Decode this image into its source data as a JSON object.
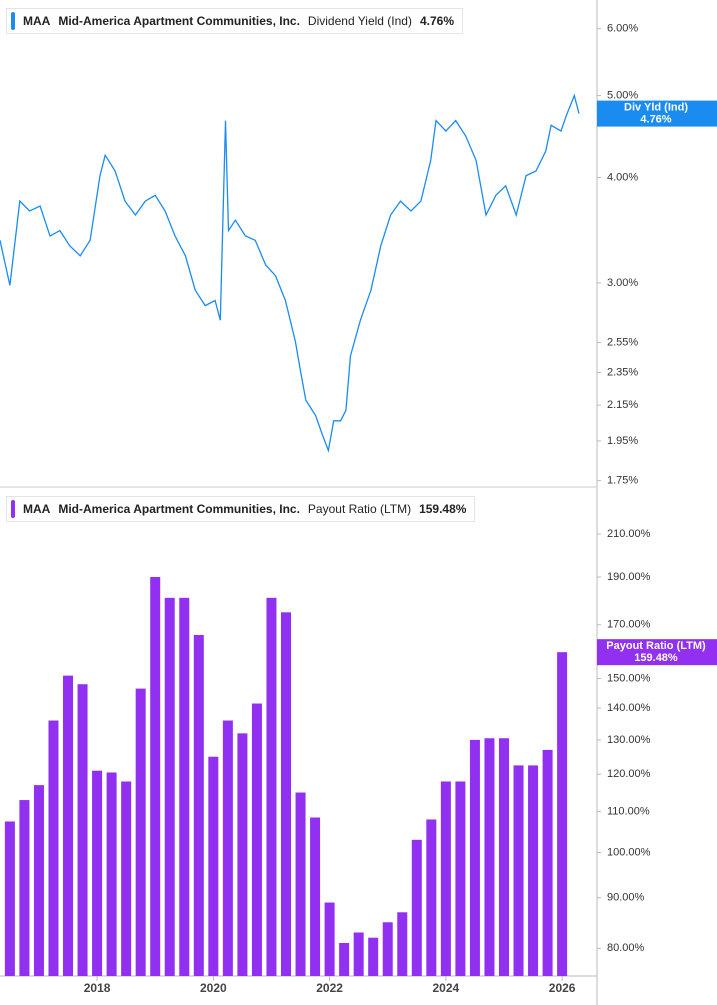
{
  "chart_data": [
    {
      "type": "line",
      "ticker": "MAA",
      "company": "Mid-America Apartment Communities, Inc.",
      "metric": "Dividend Yield (Ind)",
      "current": 4.76,
      "current_label": "4.76%",
      "badge_title": "Div Yld (Ind)",
      "color": "#1a8cf0",
      "log_scale": true,
      "x": [
        2016.33,
        2016.5,
        2016.67,
        2016.84,
        2017.02,
        2017.19,
        2017.36,
        2017.53,
        2017.71,
        2017.88,
        2018.05,
        2018.14,
        2018.31,
        2018.48,
        2018.66,
        2018.83,
        2019.0,
        2019.17,
        2019.34,
        2019.52,
        2019.69,
        2019.86,
        2020.03,
        2020.12,
        2020.21,
        2020.26,
        2020.38,
        2020.55,
        2020.72,
        2020.9,
        2021.07,
        2021.24,
        2021.41,
        2021.5,
        2021.59,
        2021.76,
        2021.88,
        2021.98,
        2022.07,
        2022.19,
        2022.28,
        2022.36,
        2022.53,
        2022.71,
        2022.88,
        2023.05,
        2023.22,
        2023.4,
        2023.57,
        2023.74,
        2023.83,
        2024.0,
        2024.17,
        2024.34,
        2024.52,
        2024.69,
        2024.86,
        2025.03,
        2025.21,
        2025.38,
        2025.55,
        2025.72,
        2025.81,
        2025.98,
        2026.07,
        2026.21,
        2026.29
      ],
      "values": [
        3.37,
        2.98,
        3.75,
        3.65,
        3.7,
        3.41,
        3.46,
        3.32,
        3.23,
        3.37,
        4.02,
        4.25,
        4.07,
        3.75,
        3.61,
        3.75,
        3.81,
        3.65,
        3.41,
        3.23,
        2.94,
        2.82,
        2.86,
        2.71,
        4.67,
        3.46,
        3.56,
        3.41,
        3.37,
        3.15,
        3.06,
        2.86,
        2.56,
        2.36,
        2.18,
        2.09,
        1.98,
        1.9,
        2.06,
        2.06,
        2.12,
        2.46,
        2.71,
        2.94,
        3.32,
        3.61,
        3.75,
        3.65,
        3.75,
        4.19,
        4.67,
        4.54,
        4.67,
        4.48,
        4.19,
        3.61,
        3.81,
        3.91,
        3.61,
        4.02,
        4.07,
        4.3,
        4.61,
        4.54,
        4.73,
        5.0,
        4.76
      ],
      "xlim": [
        2016.33,
        2026.6
      ],
      "ylim": [
        1.72,
        6.4
      ],
      "yticks": [
        {
          "value": 1.75,
          "label": "1.75%"
        },
        {
          "value": 1.95,
          "label": "1.95%"
        },
        {
          "value": 2.15,
          "label": "2.15%"
        },
        {
          "value": 2.35,
          "label": "2.35%"
        },
        {
          "value": 2.55,
          "label": "2.55%"
        },
        {
          "value": 3,
          "label": "3.00%"
        },
        {
          "value": 4,
          "label": "4.00%"
        },
        {
          "value": 5,
          "label": "5.00%"
        },
        {
          "value": 6,
          "label": "6.00%"
        }
      ]
    },
    {
      "type": "bar",
      "ticker": "MAA",
      "company": "Mid-America Apartment Communities, Inc.",
      "metric": "Payout Ratio (LTM)",
      "current": 159.48,
      "current_label": "159.48%",
      "color": "#9130f0",
      "log_scale": true,
      "x": [
        2016.5,
        2016.75,
        2017,
        2017.25,
        2017.5,
        2017.75,
        2018,
        2018.25,
        2018.5,
        2018.75,
        2019,
        2019.25,
        2019.5,
        2019.75,
        2020,
        2020.25,
        2020.5,
        2020.75,
        2021,
        2021.25,
        2021.5,
        2021.75,
        2022,
        2022.25,
        2022.5,
        2022.75,
        2023,
        2023.25,
        2023.5,
        2023.75,
        2024,
        2024.25,
        2024.5,
        2024.75,
        2025,
        2025.25,
        2025.5,
        2025.75,
        2026
      ],
      "values": [
        107.5,
        113,
        117,
        136,
        151,
        148,
        121,
        120.5,
        118,
        146.5,
        190,
        181,
        181,
        166,
        125,
        136,
        132,
        141.5,
        181,
        175,
        115,
        108.5,
        89,
        81,
        83,
        82,
        85,
        87,
        103,
        108,
        118,
        118,
        130,
        130.5,
        130.5,
        122.5,
        122.5,
        127,
        159.48
      ],
      "xlim": [
        2016.33,
        2026.6
      ],
      "ylim": [
        75,
        230
      ],
      "xticks": [
        2018,
        2020,
        2022,
        2024,
        2026
      ],
      "yticks": [
        {
          "value": 80,
          "label": "80.00%"
        },
        {
          "value": 90,
          "label": "90.00%"
        },
        {
          "value": 100,
          "label": "100.00%"
        },
        {
          "value": 110,
          "label": "110.00%"
        },
        {
          "value": 120,
          "label": "120.00%"
        },
        {
          "value": 130,
          "label": "130.00%"
        },
        {
          "value": 140,
          "label": "140.00%"
        },
        {
          "value": 150,
          "label": "150.00%"
        },
        {
          "value": 170,
          "label": "170.00%"
        },
        {
          "value": 190,
          "label": "190.00%"
        },
        {
          "value": 210,
          "label": "210.00%"
        }
      ]
    }
  ]
}
